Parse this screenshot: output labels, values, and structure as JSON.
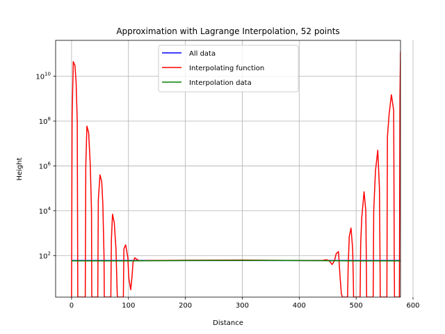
{
  "chart_data": {
    "type": "line",
    "title": "Approximation with Lagrange Interpolation, 52 points",
    "xlabel": "Distance",
    "ylabel": "Height",
    "xlim": [
      -28,
      578
    ],
    "ylim": [
      1.4,
      400000000000.0
    ],
    "yscale": "log",
    "grid": true,
    "legend_position": "top-center",
    "xticks": [
      0,
      100,
      200,
      300,
      400,
      500,
      600
    ],
    "xtick_labels": [
      "0",
      "100",
      "200",
      "300",
      "400",
      "500",
      "600"
    ],
    "yticks": [
      100,
      10000,
      1000000,
      100000000,
      10000000000
    ],
    "ytick_labels": [
      {
        "base": "10",
        "exp": "2"
      },
      {
        "base": "10",
        "exp": "4"
      },
      {
        "base": "10",
        "exp": "6"
      },
      {
        "base": "10",
        "exp": "8"
      },
      {
        "base": "10",
        "exp": "10"
      }
    ],
    "series": [
      {
        "name": "All data",
        "color": "#0000ff",
        "x": [
          0,
          578
        ],
        "y": [
          60,
          60
        ]
      },
      {
        "name": "Interpolating function",
        "color": "#ff0000",
        "x": [
          0,
          1,
          3,
          6,
          8,
          10,
          11,
          11.5,
          24,
          25,
          27,
          30,
          33,
          35,
          35.5,
          46,
          47,
          50,
          53,
          55,
          57,
          57.5,
          69,
          70,
          72,
          75,
          78,
          80,
          80.5,
          91,
          92,
          95,
          99,
          100.5,
          104,
          106,
          108,
          111,
          114,
          118,
          124,
          133,
          200,
          300,
          400,
          440,
          448,
          452,
          458,
          462,
          465,
          469,
          472,
          474,
          476,
          476.5,
          485,
          486,
          488,
          491,
          494,
          495,
          495.5,
          507,
          508,
          510,
          514,
          517,
          518,
          518.5,
          530,
          531,
          534,
          538,
          541,
          542,
          542.5,
          554,
          555,
          558,
          562,
          566,
          567,
          567.5,
          576,
          577,
          578
        ],
        "y": [
          1.4,
          150000000.0,
          45000000000.0,
          30000000000.0,
          5000000000.0,
          100000000.0,
          1.4,
          1.4,
          1.4,
          1000000.0,
          60000000.0,
          30000000.0,
          1000000.0,
          10000.0,
          1.4,
          1.4,
          30000.0,
          400000.0,
          200000.0,
          20000.0,
          100,
          1.4,
          1.4,
          500,
          7000,
          3000,
          200,
          3,
          1.4,
          1.4,
          200,
          300,
          80,
          10,
          3,
          10,
          50,
          80,
          70,
          60,
          58,
          60,
          62,
          63,
          60,
          60,
          65,
          60,
          40,
          60,
          120,
          150,
          10,
          2,
          1.4,
          1.4,
          1.4,
          30,
          700,
          1700,
          200,
          10,
          1.4,
          1.4,
          300,
          5000,
          70000.0,
          10000.0,
          50,
          1.4,
          1.4,
          10000.0,
          600000.0,
          5000000.0,
          100000.0,
          100,
          1.4,
          1.4,
          20000000.0,
          200000000.0,
          1500000000.0,
          300000000.0,
          100,
          1.4,
          1.4,
          1000000000.0,
          130000000000.0
        ]
      },
      {
        "name": "Interpolation data",
        "color": "#008000",
        "x": [
          0,
          100,
          200,
          300,
          400,
          500,
          578
        ],
        "y": [
          58,
          58,
          60,
          61,
          60,
          58,
          58
        ]
      }
    ]
  }
}
